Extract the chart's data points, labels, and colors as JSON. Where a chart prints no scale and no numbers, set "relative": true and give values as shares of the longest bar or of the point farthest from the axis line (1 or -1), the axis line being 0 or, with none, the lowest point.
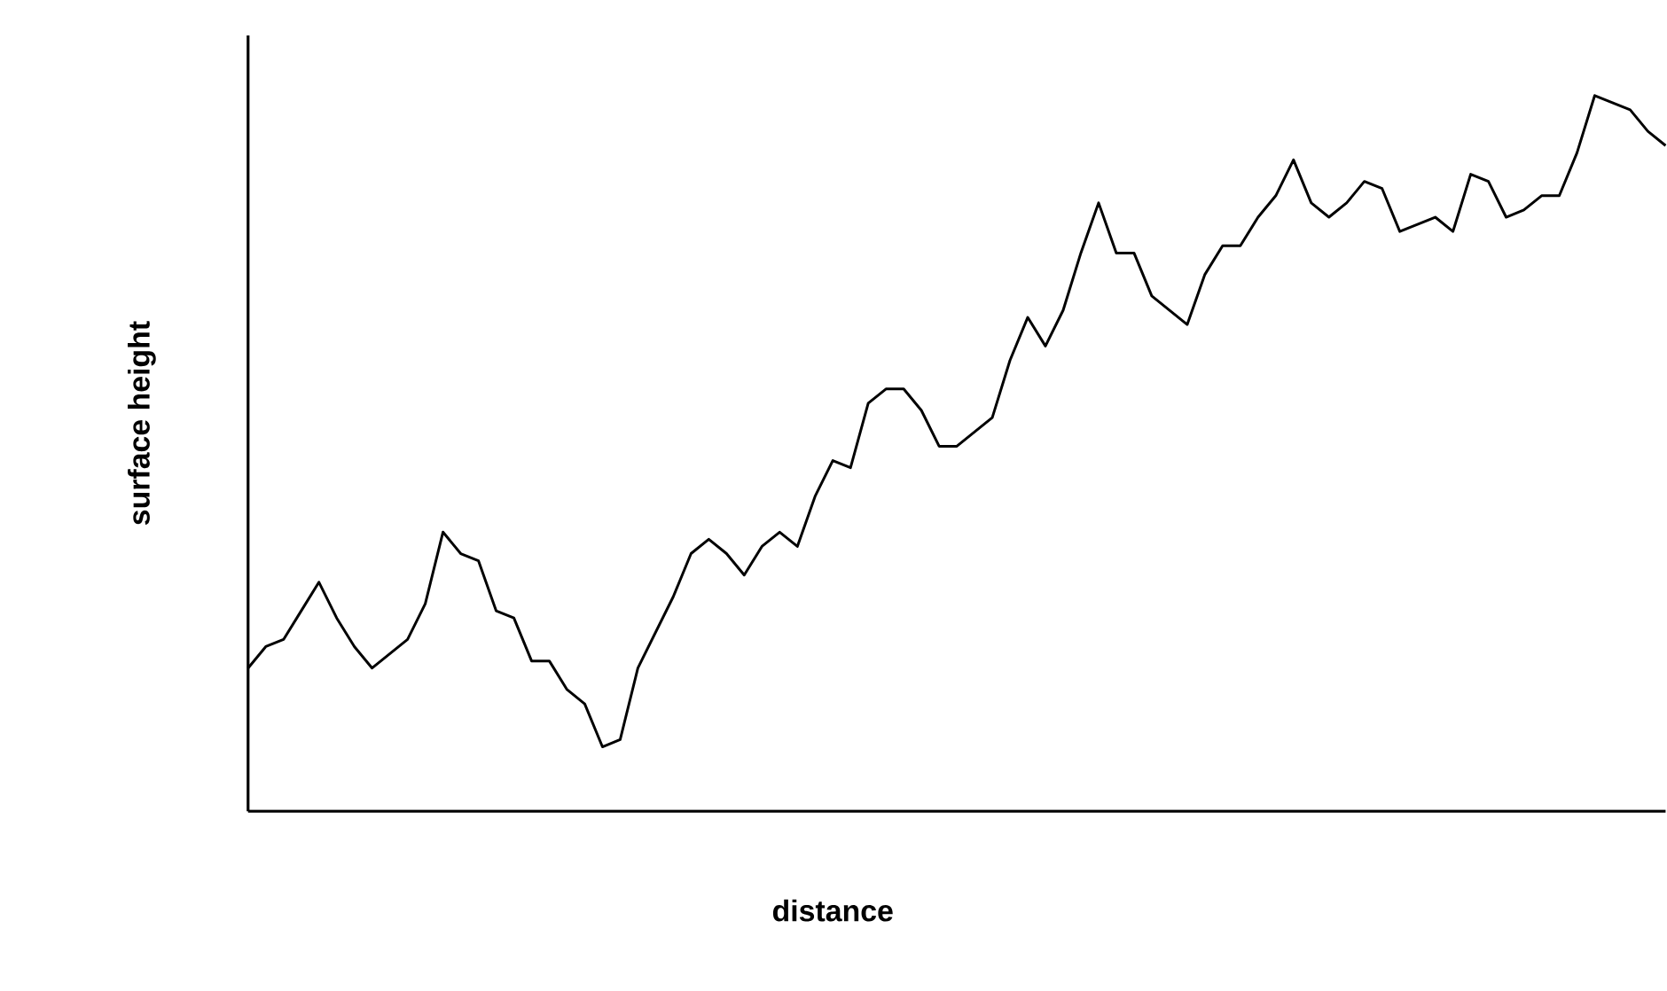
{
  "chart_data": {
    "type": "line",
    "relative": true,
    "xlabel": "distance",
    "ylabel": "surface height",
    "color": "#000000",
    "categories": [
      null,
      null,
      null,
      null,
      null,
      null,
      null,
      null,
      null,
      null,
      null,
      null,
      null,
      null,
      null,
      null,
      null,
      null,
      null,
      null,
      null,
      null,
      null,
      null,
      null,
      null,
      null,
      null,
      null,
      null,
      null,
      null,
      null,
      null,
      null,
      null,
      null,
      null,
      null,
      null,
      null,
      null,
      null,
      null,
      null,
      null,
      null,
      null,
      null,
      null,
      null,
      null,
      null,
      null,
      null,
      null,
      null,
      null,
      null,
      null,
      null,
      null,
      null,
      null,
      null,
      null,
      null,
      null,
      null,
      null,
      null,
      null,
      null,
      null,
      null,
      null,
      null,
      null,
      null,
      null,
      null
    ],
    "values": [
      0.2,
      0.23,
      0.24,
      0.28,
      0.32,
      0.27,
      0.23,
      0.2,
      0.22,
      0.24,
      0.29,
      0.39,
      0.36,
      0.35,
      0.28,
      0.27,
      0.21,
      0.21,
      0.17,
      0.15,
      0.09,
      0.1,
      0.2,
      0.25,
      0.3,
      0.36,
      0.38,
      0.36,
      0.33,
      0.37,
      0.39,
      0.37,
      0.44,
      0.49,
      0.48,
      0.57,
      0.59,
      0.59,
      0.56,
      0.51,
      0.51,
      0.53,
      0.55,
      0.63,
      0.69,
      0.65,
      0.7,
      0.78,
      0.85,
      0.78,
      0.78,
      0.72,
      0.7,
      0.68,
      0.75,
      0.79,
      0.79,
      0.83,
      0.86,
      0.91,
      0.85,
      0.83,
      0.85,
      0.88,
      0.87,
      0.81,
      0.82,
      0.83,
      0.81,
      0.89,
      0.88,
      0.83,
      0.84,
      0.86,
      0.86,
      0.92,
      1.0,
      0.99,
      0.98,
      0.95,
      0.93
    ]
  }
}
